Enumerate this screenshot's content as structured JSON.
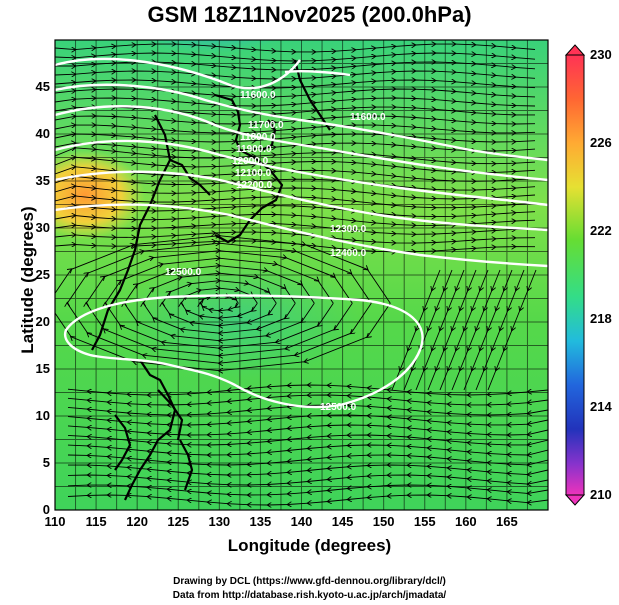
{
  "title": "GSM 18Z11Nov2025 (200.0hPa)",
  "xlabel": "Longitude (degrees)",
  "ylabel": "Latitude  (degrees)",
  "xticks": [
    "110",
    "115",
    "120",
    "125",
    "130",
    "135",
    "140",
    "145",
    "150",
    "155",
    "160",
    "165"
  ],
  "yticks": [
    "0",
    "5",
    "10",
    "15",
    "20",
    "25",
    "30",
    "35",
    "40",
    "45"
  ],
  "colorbar_ticks": [
    "230",
    "226",
    "222",
    "218",
    "214",
    "210"
  ],
  "contour_labels": [
    "11600.0",
    "11600.0",
    "11700.0",
    "11800.0",
    "11900.0",
    "12000.0",
    "12100.0",
    "12200.0",
    "12300.0",
    "12400.0",
    "12500.0",
    "12500.0"
  ],
  "credit_line1": "Drawing by DCL (https://www.gfd-dennou.org/library/dcl/)",
  "credit_line2": "Data from http://database.rish.kyoto-u.ac.jp/arch/jmadata/",
  "chart_data": {
    "type": "heatmap",
    "variable": "temperature (K) with geopotential height contours and wind streamlines",
    "x_range": [
      110,
      170
    ],
    "y_range": [
      0,
      50
    ],
    "color_range": [
      210,
      230
    ],
    "colors": {
      "cold": "#2244cc",
      "mid": "#44dd55",
      "warm": "#ff8833",
      "hot": "#ff3355"
    }
  }
}
